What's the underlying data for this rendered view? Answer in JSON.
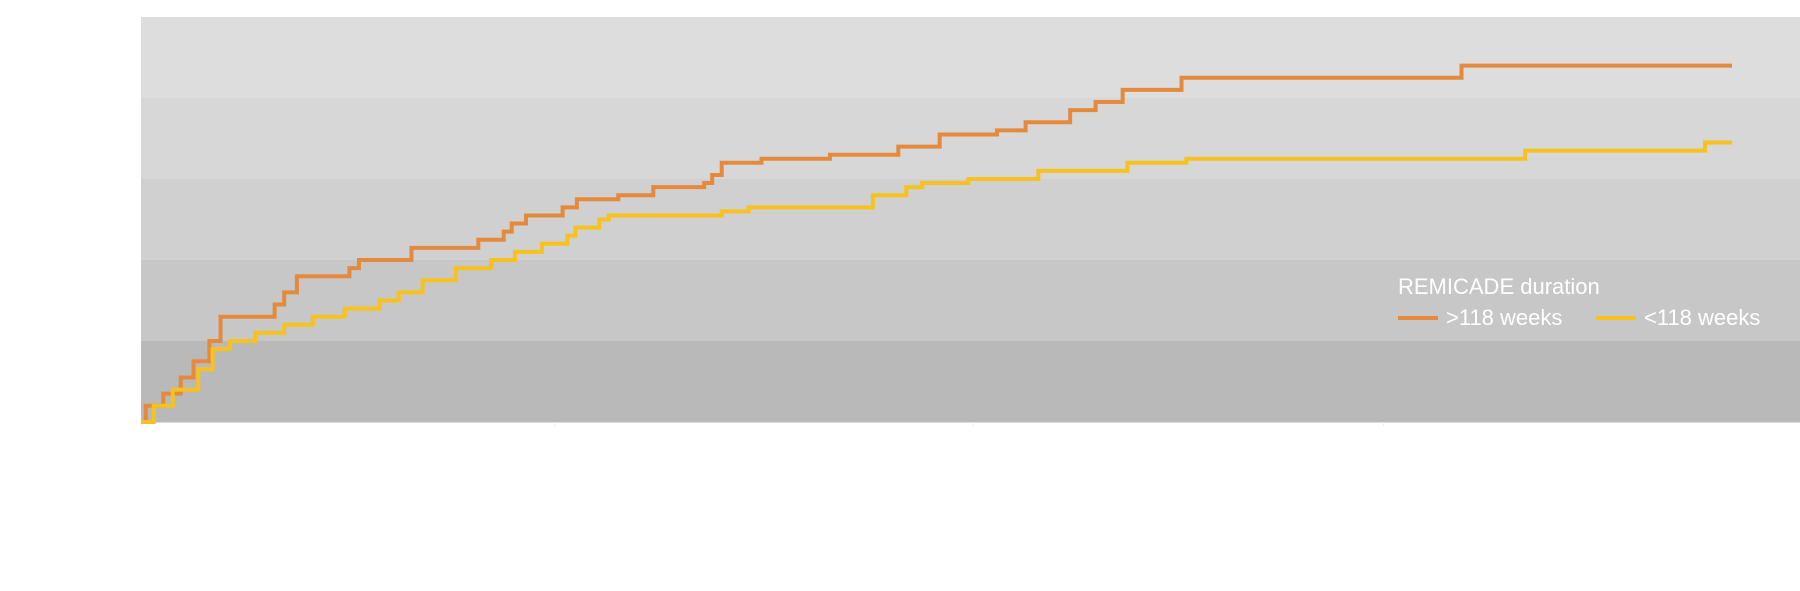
{
  "chart_data": {
    "type": "line",
    "step": true,
    "title": "",
    "xlabel": "",
    "ylabel": "",
    "xlim": [
      0,
      1000
    ],
    "ylim": [
      0,
      1
    ],
    "background_bands": [
      "#dcdddc",
      "#d6d7d6",
      "#cfd0cf",
      "#c6c7c6",
      "#b8b9b8"
    ],
    "grid": false,
    "legend": {
      "title": "REMICADE duration",
      "placement": "right"
    },
    "series": [
      {
        "name": ">118 weeks",
        "color": "#e58a3c",
        "points": [
          [
            0,
            0
          ],
          [
            3,
            0.04
          ],
          [
            14,
            0.07
          ],
          [
            25,
            0.11
          ],
          [
            33,
            0.15
          ],
          [
            43,
            0.2
          ],
          [
            50,
            0.26
          ],
          [
            84,
            0.29
          ],
          [
            90,
            0.32
          ],
          [
            98,
            0.36
          ],
          [
            131,
            0.38
          ],
          [
            137,
            0.4
          ],
          [
            170,
            0.43
          ],
          [
            212,
            0.45
          ],
          [
            228,
            0.47
          ],
          [
            233,
            0.49
          ],
          [
            242,
            0.51
          ],
          [
            265,
            0.53
          ],
          [
            274,
            0.55
          ],
          [
            300,
            0.56
          ],
          [
            322,
            0.58
          ],
          [
            354,
            0.59
          ],
          [
            359,
            0.61
          ],
          [
            365,
            0.64
          ],
          [
            390,
            0.65
          ],
          [
            433,
            0.66
          ],
          [
            476,
            0.68
          ],
          [
            502,
            0.71
          ],
          [
            538,
            0.72
          ],
          [
            556,
            0.74
          ],
          [
            584,
            0.77
          ],
          [
            600,
            0.79
          ],
          [
            617,
            0.82
          ],
          [
            654,
            0.85
          ],
          [
            830,
            0.88
          ],
          [
            1000,
            0.88
          ]
        ]
      },
      {
        "name": "<118 weeks",
        "color": "#f7c21f",
        "points": [
          [
            0,
            0
          ],
          [
            8,
            0.04
          ],
          [
            20,
            0.08
          ],
          [
            36,
            0.13
          ],
          [
            45,
            0.18
          ],
          [
            56,
            0.2
          ],
          [
            72,
            0.22
          ],
          [
            90,
            0.24
          ],
          [
            108,
            0.26
          ],
          [
            128,
            0.28
          ],
          [
            150,
            0.3
          ],
          [
            162,
            0.32
          ],
          [
            177,
            0.35
          ],
          [
            198,
            0.38
          ],
          [
            220,
            0.4
          ],
          [
            235,
            0.42
          ],
          [
            252,
            0.44
          ],
          [
            268,
            0.46
          ],
          [
            273,
            0.48
          ],
          [
            288,
            0.5
          ],
          [
            294,
            0.51
          ],
          [
            365,
            0.52
          ],
          [
            382,
            0.53
          ],
          [
            460,
            0.56
          ],
          [
            481,
            0.58
          ],
          [
            491,
            0.59
          ],
          [
            520,
            0.6
          ],
          [
            564,
            0.62
          ],
          [
            620,
            0.64
          ],
          [
            657,
            0.65
          ],
          [
            870,
            0.67
          ],
          [
            983,
            0.69
          ],
          [
            1000,
            0.69
          ]
        ]
      }
    ]
  }
}
